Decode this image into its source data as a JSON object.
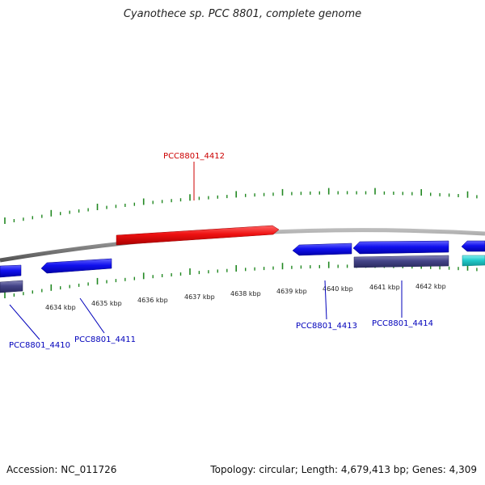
{
  "title": "Cyanothece sp. PCC 8801, complete genome",
  "footer": {
    "accession": "Accession: NC_011726",
    "summary": "Topology: circular; Length: 4,679,413 bp; Genes: 4,309"
  },
  "colors": {
    "forward_gene": "#ee1111",
    "reverse_gene": "#1111ee",
    "rna_reverse": "#444488",
    "cyan_feature": "#22cccc",
    "backbone": "#8a8a8a",
    "tick": "#228822",
    "label_forward": "#cc0000",
    "label_reverse": "#0000bb"
  },
  "scale": {
    "labels": [
      "4634 kbp",
      "4635 kbp",
      "4636 kbp",
      "4637 kbp",
      "4638 kbp",
      "4639 kbp",
      "4640 kbp",
      "4641 kbp",
      "4642 kbp"
    ]
  },
  "genes": [
    {
      "name": "PCC8801_4410",
      "strand": "reverse"
    },
    {
      "name": "PCC8801_4411",
      "strand": "reverse"
    },
    {
      "name": "PCC8801_4412",
      "strand": "forward"
    },
    {
      "name": "PCC8801_4413",
      "strand": "reverse"
    },
    {
      "name": "PCC8801_4414",
      "strand": "reverse"
    }
  ]
}
